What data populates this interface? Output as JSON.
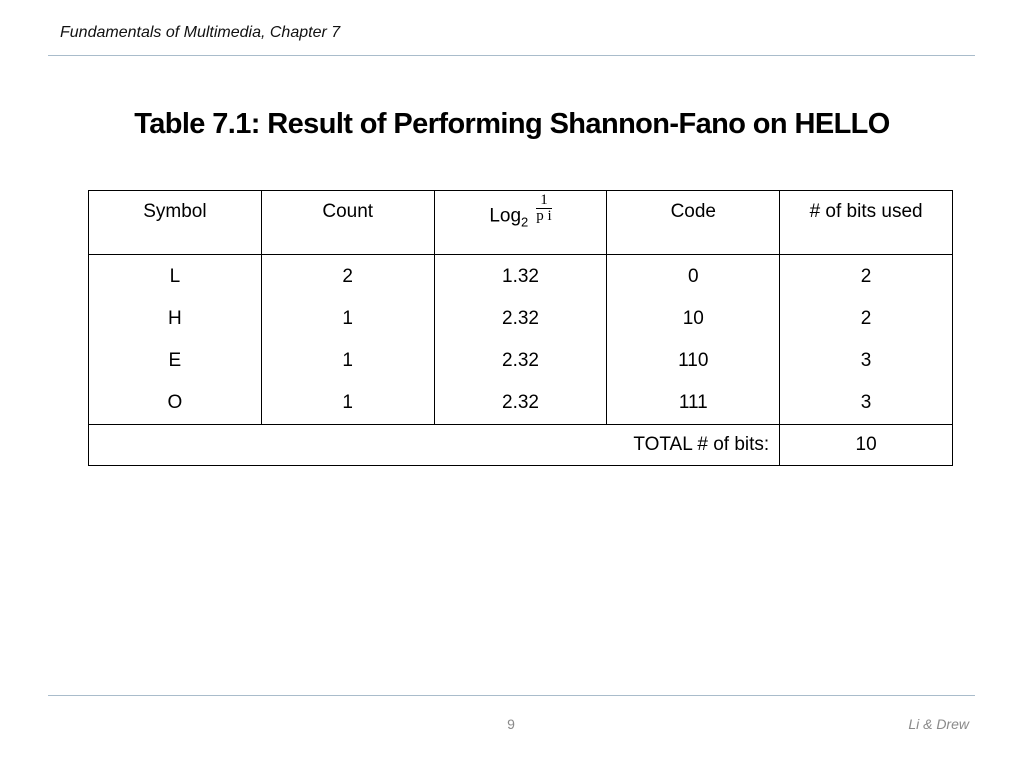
{
  "header": {
    "title": "Fundamentals of Multimedia, Chapter 7"
  },
  "slide": {
    "title": "Table 7.1: Result of Performing Shannon-Fano on HELLO"
  },
  "table": {
    "columns": [
      "Symbol",
      "Count",
      "Log",
      "Code",
      "# of bits used"
    ],
    "log_subscript": "2",
    "log_fraction": {
      "numerator": "1",
      "denominator": "p",
      "denominator_subscript": "i"
    },
    "rows": [
      [
        "L",
        "2",
        "1.32",
        "0",
        "2"
      ],
      [
        "H",
        "1",
        "2.32",
        "10",
        "2"
      ],
      [
        "E",
        "1",
        "2.32",
        "110",
        "3"
      ],
      [
        "O",
        "1",
        "2.32",
        "111",
        "3"
      ]
    ],
    "total_label": "TOTAL # of bits:",
    "total_value": "10"
  },
  "footer": {
    "page": "9",
    "authors": "Li & Drew"
  }
}
